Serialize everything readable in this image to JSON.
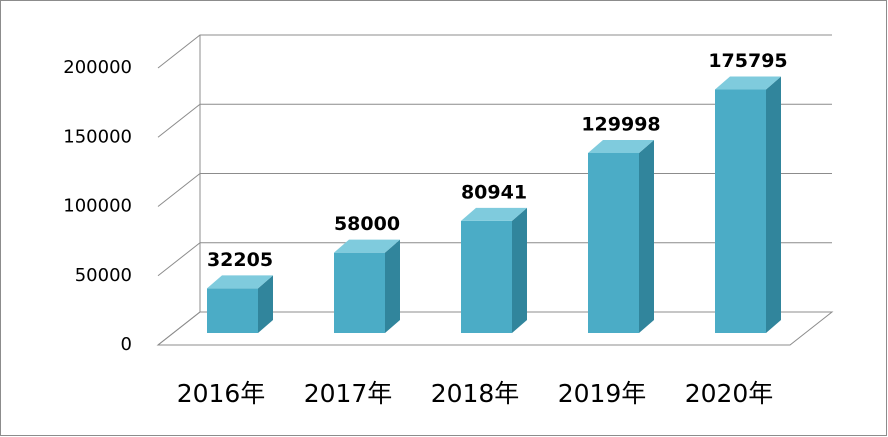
{
  "chart_data": {
    "type": "bar3d",
    "categories": [
      "2016年",
      "2017年",
      "2018年",
      "2019年",
      "2020年"
    ],
    "values": [
      32205,
      58000,
      80941,
      129998,
      175795
    ],
    "color": "#4bacc6",
    "ylim": [
      0,
      200000
    ],
    "yticks": [
      0,
      50000,
      100000,
      150000,
      200000
    ],
    "grid": true
  }
}
